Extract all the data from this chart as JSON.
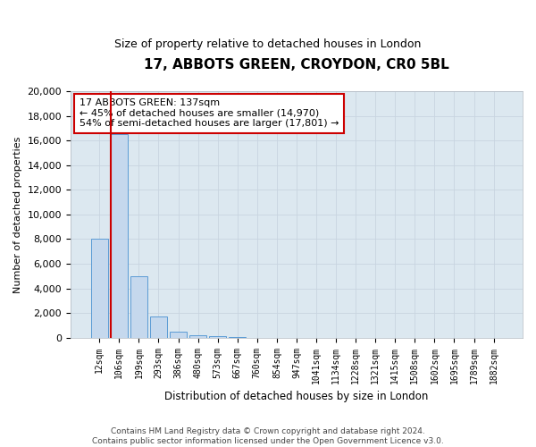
{
  "title_line1": "17, ABBOTS GREEN, CROYDON, CR0 5BL",
  "title_line2": "Size of property relative to detached houses in London",
  "xlabel": "Distribution of detached houses by size in London",
  "ylabel": "Number of detached properties",
  "categories": [
    "12sqm",
    "106sqm",
    "199sqm",
    "293sqm",
    "386sqm",
    "480sqm",
    "573sqm",
    "667sqm",
    "760sqm",
    "854sqm",
    "947sqm",
    "1041sqm",
    "1134sqm",
    "1228sqm",
    "1321sqm",
    "1415sqm",
    "1508sqm",
    "1602sqm",
    "1695sqm",
    "1789sqm",
    "1882sqm"
  ],
  "bar_values": [
    8000,
    16500,
    5000,
    1700,
    500,
    200,
    100,
    50,
    20,
    0,
    0,
    0,
    0,
    0,
    0,
    0,
    0,
    0,
    0,
    0,
    0
  ],
  "bar_color": "#c5d8ed",
  "bar_edge_color": "#5b9bd5",
  "annotation_text": "17 ABBOTS GREEN: 137sqm\n← 45% of detached houses are smaller (14,970)\n54% of semi-detached houses are larger (17,801) →",
  "annotation_box_color": "#ffffff",
  "annotation_box_edge_color": "#cc0000",
  "red_line_color": "#cc0000",
  "ylim": [
    0,
    20000
  ],
  "yticks": [
    0,
    2000,
    4000,
    6000,
    8000,
    10000,
    12000,
    14000,
    16000,
    18000,
    20000
  ],
  "grid_color": "#c8d4e0",
  "background_color": "#dce8f0",
  "footer_text": "Contains HM Land Registry data © Crown copyright and database right 2024.\nContains public sector information licensed under the Open Government Licence v3.0."
}
